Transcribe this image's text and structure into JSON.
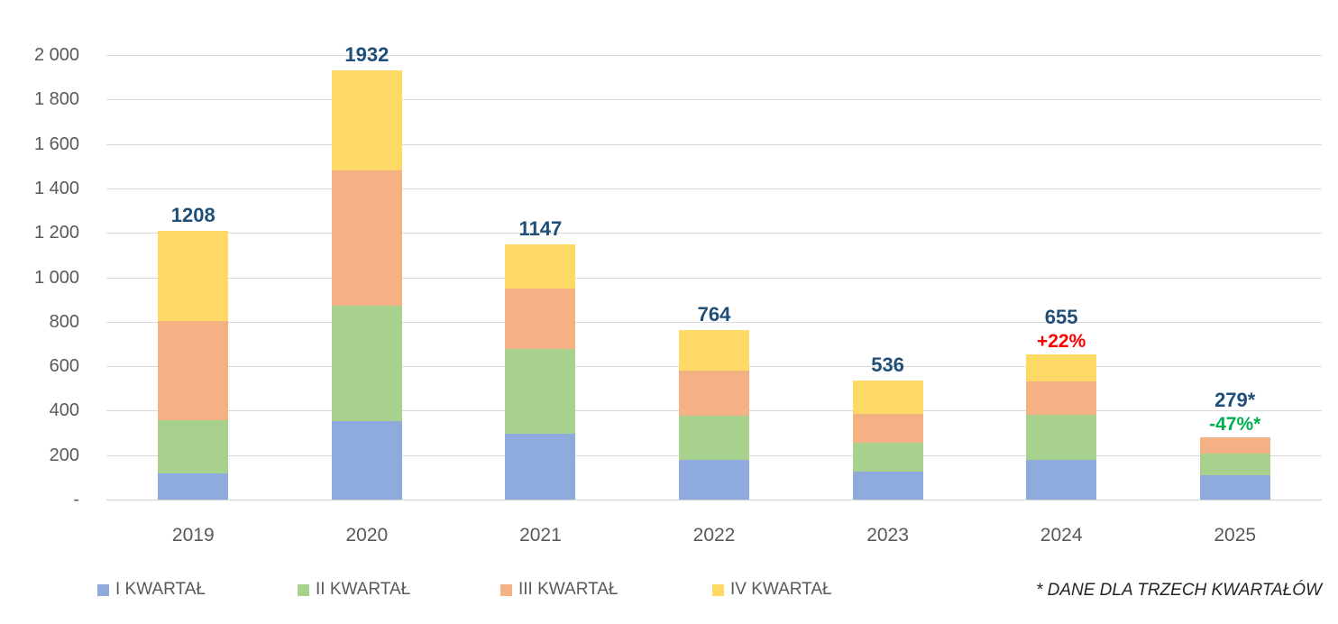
{
  "chart_data": {
    "type": "bar",
    "stacked": true,
    "categories": [
      "2019",
      "2020",
      "2021",
      "2022",
      "2023",
      "2024",
      "2025"
    ],
    "series": [
      {
        "name": "I KWARTAŁ",
        "color": "#8FAADC",
        "values": [
          118,
          355,
          298,
          180,
          125,
          179,
          109
        ]
      },
      {
        "name": "II KWARTAŁ",
        "color": "#A9D18E",
        "values": [
          240,
          518,
          380,
          198,
          132,
          201,
          98
        ]
      },
      {
        "name": "III KWARTAŁ",
        "color": "#F4B183",
        "values": [
          445,
          606,
          272,
          202,
          127,
          151,
          72
        ]
      },
      {
        "name": "IV KWARTAŁ",
        "color": "#FFD966",
        "values": [
          405,
          453,
          197,
          184,
          152,
          124,
          0
        ]
      }
    ],
    "total_labels": [
      "1208",
      "1932",
      "1147",
      "764",
      "536",
      "655",
      "279*"
    ],
    "total_values": [
      1208,
      1932,
      1147,
      764,
      536,
      655,
      279
    ],
    "change_labels": [
      null,
      null,
      null,
      null,
      null,
      {
        "text": "+22%",
        "color": "#FF0000"
      },
      {
        "text": "-47%*",
        "color": "#00B050"
      }
    ],
    "y_axis": {
      "min": 0,
      "max": 2000,
      "step": 200,
      "tick_labels": [
        "2 000",
        "1 800",
        "1 600",
        "1 400",
        "1 200",
        "1 000",
        "800",
        "600",
        "400",
        "200",
        "-"
      ]
    },
    "grid": true,
    "legend_position": "bottom",
    "footnote": "* DANE DLA TRZECH KWARTAŁÓW",
    "colors": {
      "total_label": "#1F4E79",
      "axis_text": "#595959",
      "gridline": "#D9D9D9"
    }
  }
}
